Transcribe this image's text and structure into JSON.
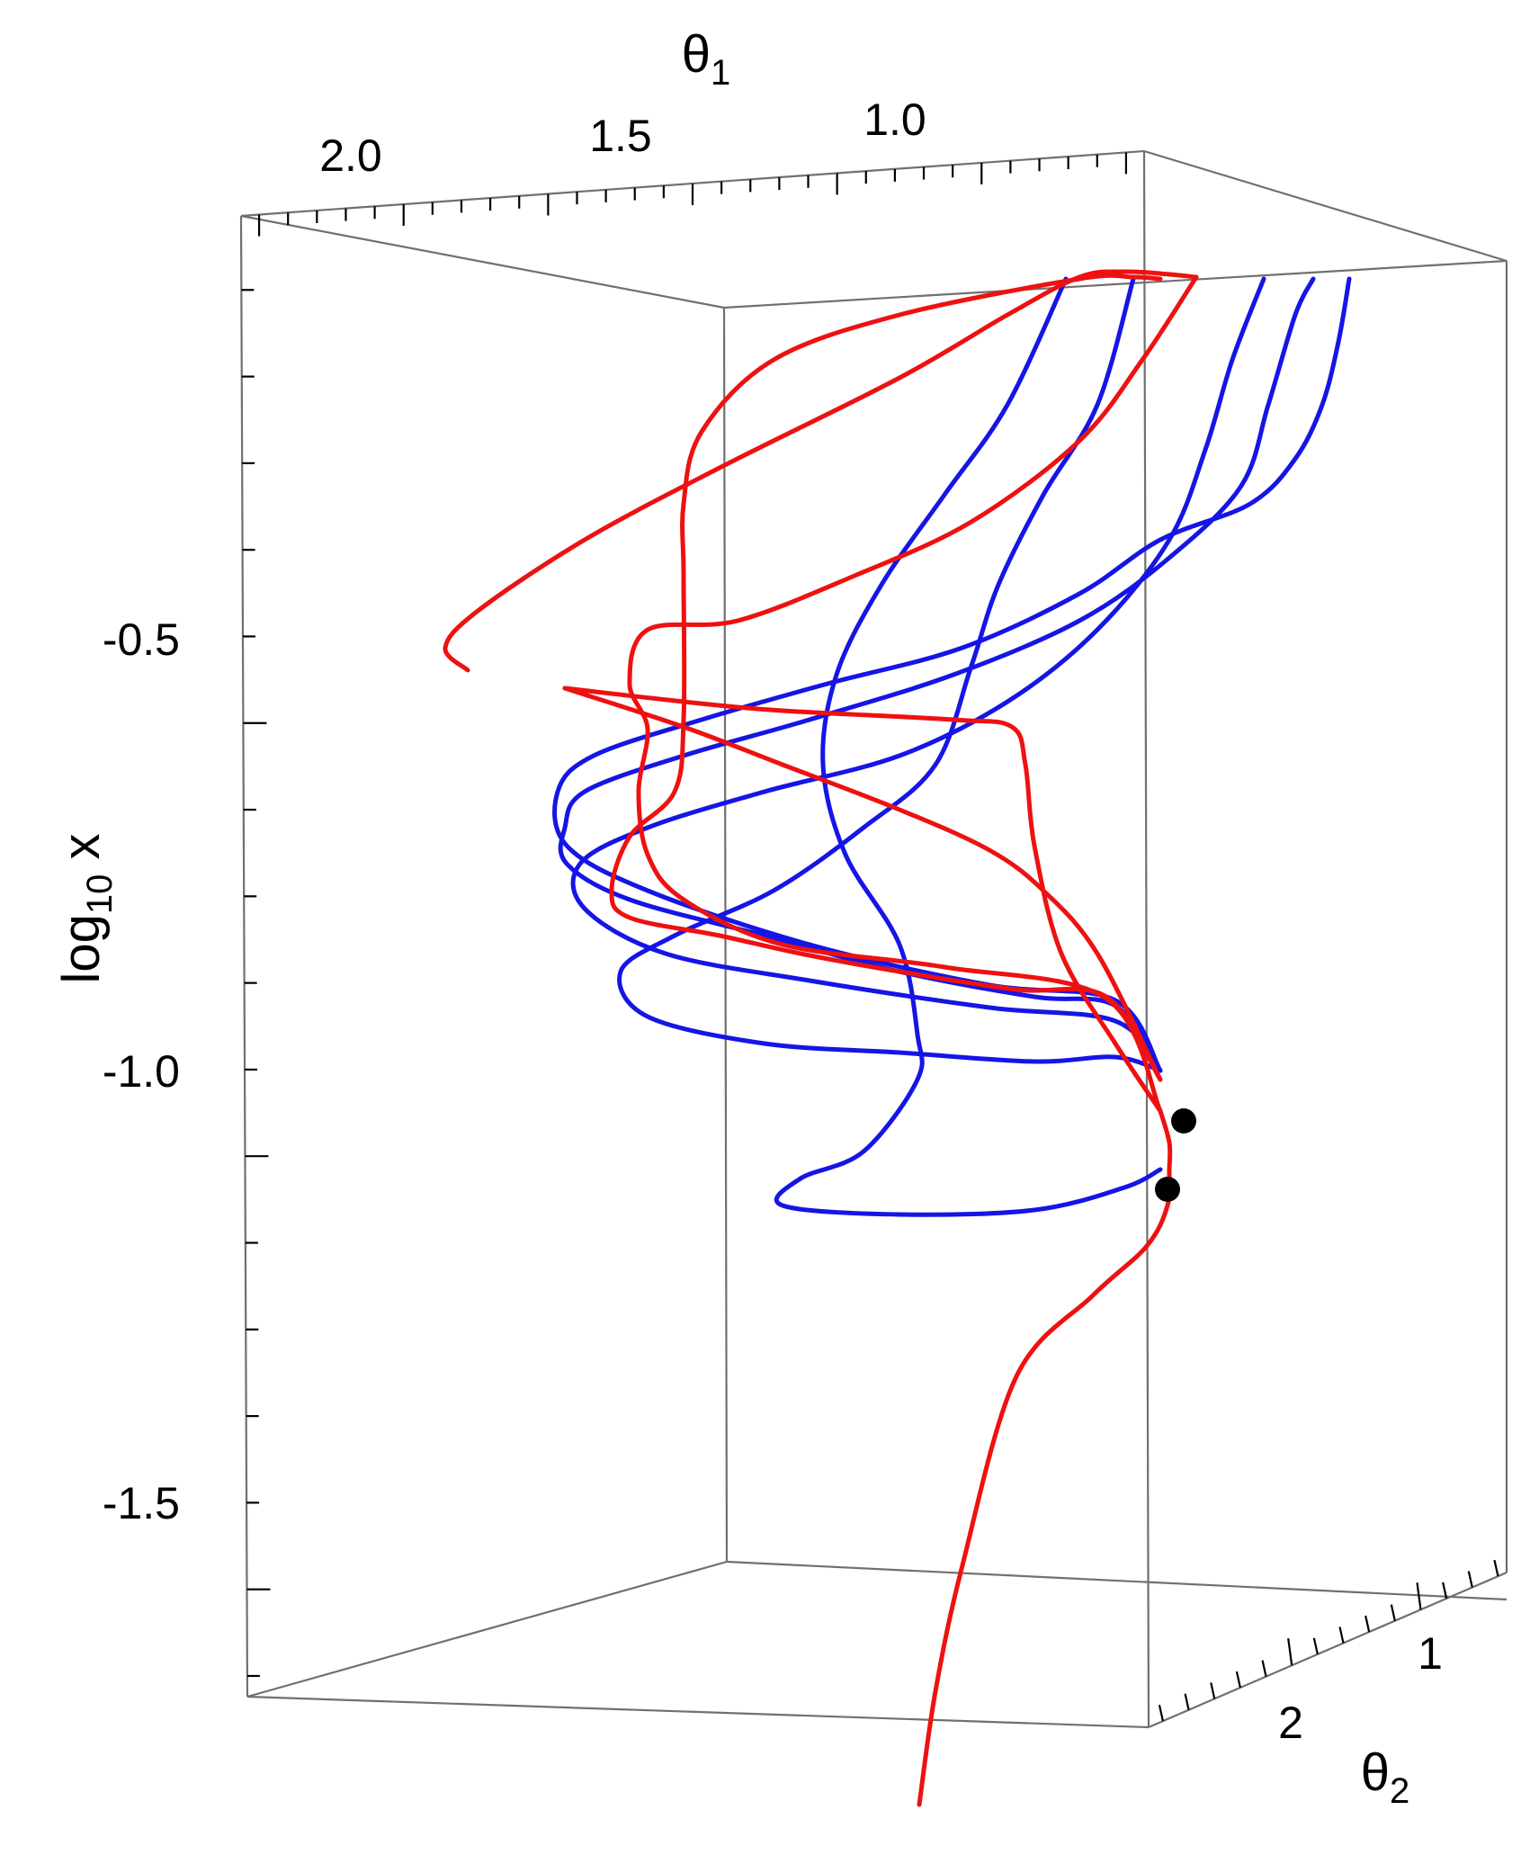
{
  "chart_data": {
    "type": "line",
    "projection": "3d",
    "axes": {
      "theta1": {
        "label": "θ",
        "subscript": "1",
        "ticks": [
          2.0,
          1.5,
          1.0
        ],
        "tick_labels": [
          "2.0",
          "1.5",
          "1.0"
        ]
      },
      "theta2": {
        "label": "θ",
        "subscript": "2",
        "ticks": [
          2,
          1
        ],
        "tick_labels": [
          "2",
          "1"
        ]
      },
      "logx": {
        "label": "log",
        "subscript": "10",
        "suffix": " x",
        "ticks": [
          -0.5,
          -1.0,
          -1.5
        ],
        "tick_labels": [
          "-0.5",
          "-1.0",
          "-1.5"
        ],
        "range": [
          -1.72,
          -0.05
        ]
      }
    },
    "grid": false,
    "colors": {
      "blue": "#1515e6",
      "red": "#ee1111",
      "point": "#000000",
      "box": "#707070"
    },
    "series": [
      {
        "color": "red",
        "points": [
          [
            1022,
            2006
          ],
          [
            1040,
            1880
          ],
          [
            1070,
            1740
          ],
          [
            1130,
            1530
          ],
          [
            1215,
            1440
          ],
          [
            1275,
            1385
          ],
          [
            1298,
            1340
          ],
          [
            1300,
            1300
          ],
          [
            1300,
            1270
          ],
          [
            1290,
            1235
          ]
        ]
      },
      {
        "color": "red",
        "points": [
          [
            1290,
            1235
          ],
          [
            1240,
            1160
          ],
          [
            1180,
            1060
          ],
          [
            1150,
            940
          ],
          [
            1140,
            850
          ],
          [
            1125,
            808
          ],
          [
            1060,
            800
          ],
          [
            870,
            790
          ],
          [
            760,
            780
          ],
          [
            628,
            765
          ]
        ]
      },
      {
        "color": "red",
        "points": [
          [
            628,
            765
          ],
          [
            760,
            808
          ],
          [
            870,
            850
          ],
          [
            1000,
            900
          ],
          [
            1100,
            945
          ],
          [
            1160,
            990
          ],
          [
            1220,
            1060
          ],
          [
            1290,
            1200
          ]
        ]
      },
      {
        "color": "red",
        "points": [
          [
            1290,
            1200
          ],
          [
            1230,
            1108
          ],
          [
            1130,
            1100
          ],
          [
            1000,
            1080
          ],
          [
            890,
            1060
          ],
          [
            800,
            1040
          ],
          [
            700,
            1020
          ],
          [
            680,
            990
          ],
          [
            700,
            930
          ],
          [
            750,
            880
          ],
          [
            760,
            800
          ],
          [
            760,
            640
          ],
          [
            760,
            560
          ],
          [
            780,
            480
          ],
          [
            860,
            400
          ],
          [
            1000,
            350
          ],
          [
            1200,
            310
          ],
          [
            1260,
            308
          ],
          [
            1290,
            310
          ]
        ]
      },
      {
        "color": "red",
        "points": [
          [
            1290,
            1235
          ],
          [
            1230,
            1110
          ],
          [
            1050,
            1075
          ],
          [
            870,
            1050
          ],
          [
            760,
            1000
          ],
          [
            720,
            950
          ],
          [
            710,
            880
          ],
          [
            720,
            810
          ],
          [
            700,
            760
          ],
          [
            720,
            700
          ],
          [
            820,
            690
          ],
          [
            950,
            640
          ],
          [
            1080,
            580
          ],
          [
            1200,
            490
          ],
          [
            1270,
            400
          ],
          [
            1330,
            308
          ]
        ]
      },
      {
        "color": "red",
        "points": [
          [
            1330,
            308
          ],
          [
            1300,
            305
          ],
          [
            1250,
            302
          ],
          [
            1200,
            308
          ],
          [
            1120,
            350
          ],
          [
            1000,
            420
          ],
          [
            800,
            520
          ],
          [
            650,
            600
          ],
          [
            530,
            680
          ],
          [
            495,
            720
          ],
          [
            520,
            745
          ]
        ]
      },
      {
        "color": "blue",
        "points": [
          [
            1290,
            1300
          ],
          [
            1250,
            1320
          ],
          [
            1150,
            1345
          ],
          [
            1000,
            1350
          ],
          [
            870,
            1340
          ],
          [
            890,
            1310
          ],
          [
            960,
            1280
          ],
          [
            1020,
            1200
          ],
          [
            1020,
            1150
          ],
          [
            1000,
            1050
          ],
          [
            940,
            950
          ],
          [
            915,
            850
          ],
          [
            930,
            750
          ],
          [
            980,
            650
          ],
          [
            1050,
            550
          ],
          [
            1120,
            450
          ],
          [
            1185,
            310
          ]
        ]
      },
      {
        "color": "blue",
        "points": [
          [
            1290,
            1190
          ],
          [
            1240,
            1175
          ],
          [
            1150,
            1180
          ],
          [
            1000,
            1170
          ],
          [
            850,
            1160
          ],
          [
            720,
            1130
          ],
          [
            690,
            1080
          ],
          [
            750,
            1040
          ],
          [
            860,
            990
          ],
          [
            960,
            920
          ],
          [
            1040,
            850
          ],
          [
            1080,
            740
          ],
          [
            1110,
            650
          ],
          [
            1160,
            550
          ],
          [
            1220,
            450
          ],
          [
            1260,
            310
          ]
        ]
      },
      {
        "color": "blue",
        "points": [
          [
            1290,
            1190
          ],
          [
            1240,
            1135
          ],
          [
            1100,
            1120
          ],
          [
            900,
            1090
          ],
          [
            740,
            1060
          ],
          [
            650,
            1010
          ],
          [
            645,
            960
          ],
          [
            720,
            920
          ],
          [
            850,
            880
          ],
          [
            1000,
            840
          ],
          [
            1120,
            780
          ],
          [
            1220,
            700
          ],
          [
            1300,
            600
          ],
          [
            1340,
            500
          ],
          [
            1370,
            400
          ],
          [
            1405,
            310
          ]
        ]
      },
      {
        "color": "blue",
        "points": [
          [
            1290,
            1190
          ],
          [
            1240,
            1118
          ],
          [
            1150,
            1108
          ],
          [
            1000,
            1080
          ],
          [
            850,
            1040
          ],
          [
            700,
            1000
          ],
          [
            630,
            960
          ],
          [
            628,
            920
          ],
          [
            650,
            880
          ],
          [
            760,
            840
          ],
          [
            900,
            800
          ],
          [
            1060,
            750
          ],
          [
            1200,
            690
          ],
          [
            1300,
            620
          ],
          [
            1380,
            540
          ],
          [
            1410,
            450
          ],
          [
            1440,
            350
          ],
          [
            1460,
            310
          ]
        ]
      },
      {
        "color": "blue",
        "points": [
          [
            1290,
            1190
          ],
          [
            1240,
            1112
          ],
          [
            1100,
            1095
          ],
          [
            900,
            1050
          ],
          [
            720,
            990
          ],
          [
            630,
            940
          ],
          [
            620,
            880
          ],
          [
            660,
            840
          ],
          [
            780,
            800
          ],
          [
            920,
            760
          ],
          [
            1070,
            720
          ],
          [
            1200,
            660
          ],
          [
            1290,
            600
          ],
          [
            1390,
            560
          ],
          [
            1440,
            510
          ],
          [
            1470,
            450
          ],
          [
            1488,
            380
          ],
          [
            1500,
            310
          ]
        ]
      }
    ],
    "points": [
      {
        "label": "",
        "theta1": null,
        "theta2": null,
        "logx": null
      },
      {
        "label": "",
        "theta1": null,
        "theta2": null,
        "logx": null
      }
    ]
  }
}
